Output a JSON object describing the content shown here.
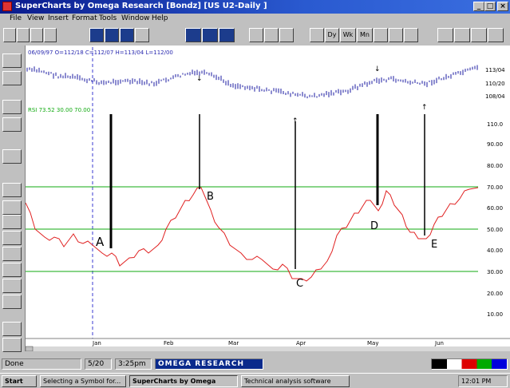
{
  "window": {
    "title": "SuperCharts by Omega Research  [Bondz] [US U2-Daily ]",
    "controls": [
      "_",
      "□",
      "×"
    ]
  },
  "menu": [
    "File",
    "View",
    "Insert",
    "Format",
    "Tools",
    "Window",
    "Help"
  ],
  "toolbar": {
    "groups": [
      {
        "name": "file-tools",
        "labels": [
          "new",
          "open",
          "save",
          "print"
        ]
      },
      {
        "name": "chart-tools",
        "labels": [
          "chart",
          "bars",
          "line",
          "data"
        ]
      },
      {
        "name": "window-tools",
        "labels": [
          "win1",
          "win2",
          "win3"
        ]
      },
      {
        "name": "study-tools",
        "labels": [
          "fx",
          "ind",
          "strat"
        ]
      },
      {
        "name": "interval-tools",
        "labels": [
          "Dy",
          "Wk",
          "Mn",
          "...",
          "+",
          "h"
        ]
      },
      {
        "name": "misc-tools",
        "labels": [
          "A",
          "draw",
          "arrow",
          "?"
        ]
      }
    ],
    "interval_labels": [
      "Dy",
      "Wk",
      "Mn"
    ]
  },
  "chart": {
    "header_text": "06/09/97  O=112/18  C=112/07  H=113/04  L=112/00",
    "indicator_text": "RSI 73.52  30.00  70.00",
    "price_axis_labels": [
      "113/04",
      "110/20",
      "108/04"
    ],
    "rsi_axis_labels": [
      "110.0",
      "90.00",
      "80.00",
      "70.00",
      "60.00",
      "50.00",
      "40.00",
      "30.00",
      "20.00",
      "10.00"
    ],
    "date_labels": [
      "Jan",
      "Feb",
      "Mar",
      "Apr",
      "May",
      "Jun"
    ],
    "points": [
      "A",
      "B",
      "C",
      "D",
      "E"
    ],
    "colors": {
      "price": "#1a1aa0",
      "rsi": "#e02020",
      "guides": "#11aa11",
      "marker": "#000000",
      "cursor": "#3a3ad0"
    }
  },
  "status": {
    "left": "Done",
    "date": "5/20",
    "time": "3:25pm",
    "brand": "OMEGA RESEARCH"
  },
  "taskbar": {
    "start": "Start",
    "items": [
      "Selecting a Symbol for...",
      "SuperCharts by Omega",
      "Technical analysis software"
    ],
    "clock": "12:01 PM"
  }
}
